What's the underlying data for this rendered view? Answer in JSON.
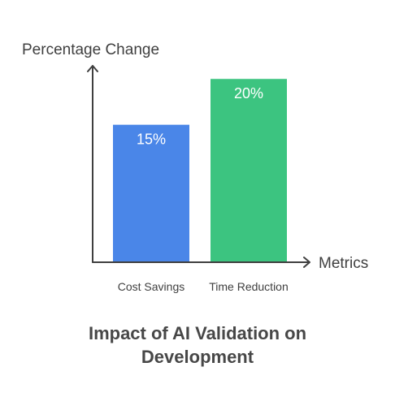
{
  "chart_data": {
    "type": "bar",
    "title": "Impact of AI Validation on Development",
    "xlabel": "Metrics",
    "ylabel": "Percentage Change",
    "categories": [
      "Cost Savings",
      "Time Reduction"
    ],
    "values": [
      15,
      20
    ],
    "data_labels": [
      "15%",
      "20%"
    ],
    "bar_colors": [
      "#4a86e8",
      "#3cc480"
    ],
    "ylim": [
      0,
      22.5
    ],
    "grid": false,
    "legend": "none"
  }
}
